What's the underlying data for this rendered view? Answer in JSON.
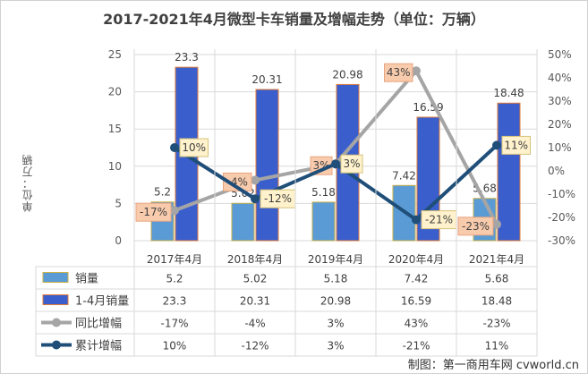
{
  "chart_data": {
    "type": "bar",
    "title": "2017-2021年4月微型卡车销量及增幅走势（单位：万辆）",
    "ylabel": "单位：万辆",
    "categories": [
      "2017年4月",
      "2018年4月",
      "2019年4月",
      "2020年4月",
      "2021年4月"
    ],
    "ylim": [
      0,
      25
    ],
    "yticks": [
      "0",
      "5",
      "10",
      "15",
      "20",
      "25"
    ],
    "y2lim": [
      -30,
      50
    ],
    "y2ticks": [
      "-30%",
      "-20%",
      "-10%",
      "0%",
      "10%",
      "20%",
      "30%",
      "40%",
      "50%"
    ],
    "series": [
      {
        "name": "销量",
        "type": "bar",
        "axis": "left",
        "color": "#5b9bd5",
        "values": [
          5.2,
          5.02,
          5.18,
          7.42,
          5.68
        ],
        "labels": [
          "5.2",
          "5.02",
          "5.18",
          "7.42",
          "5.68"
        ],
        "table": [
          "5.2",
          "5.02",
          "5.18",
          "7.42",
          "5.68"
        ]
      },
      {
        "name": "1-4月销量",
        "type": "bar",
        "axis": "left",
        "color": "#3a5fcd",
        "values": [
          23.3,
          20.31,
          20.98,
          16.59,
          18.48
        ],
        "labels": [
          "23.3",
          "20.31",
          "20.98",
          "16.59",
          "18.48"
        ],
        "table": [
          "23.3",
          "20.31",
          "20.98",
          "16.59",
          "18.48"
        ]
      },
      {
        "name": "同比增幅",
        "type": "line",
        "axis": "right",
        "color": "#a5a5a5",
        "values": [
          -17,
          -4,
          3,
          43,
          -23
        ],
        "labels": [
          "-17%",
          "-4%",
          "3%",
          "43%",
          "-23%"
        ],
        "table": [
          "-17%",
          "-4%",
          "3%",
          "43%",
          "-23%"
        ]
      },
      {
        "name": "累计增幅",
        "type": "line",
        "axis": "right",
        "color": "#1f4e79",
        "values": [
          10,
          -12,
          3,
          -21,
          11
        ],
        "labels": [
          "10%",
          "-12%",
          "3%",
          "-21%",
          "11%"
        ],
        "table": [
          "10%",
          "-12%",
          "3%",
          "-21%",
          "11%"
        ]
      }
    ]
  },
  "watermark": "制图：第一商用车网 cvworld.cn"
}
